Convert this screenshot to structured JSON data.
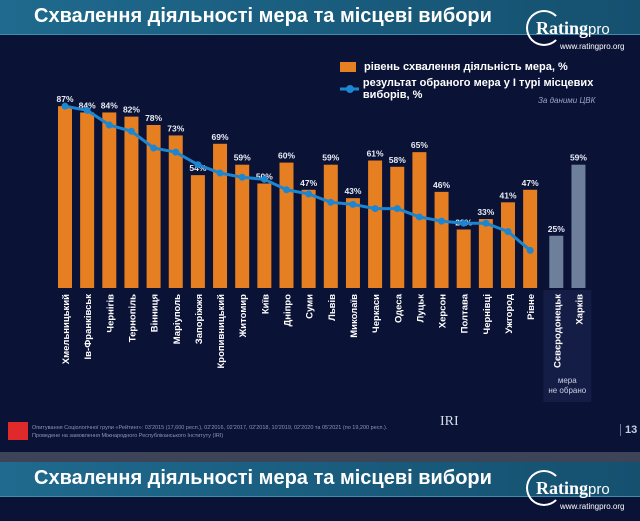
{
  "header": {
    "title": "Схвалення діяльності мера та місцеві вибори",
    "logo_name": "Rating",
    "logo_suffix": "pro",
    "logo_url": "www.ratingpro.org"
  },
  "legend": {
    "bar": "рівень схвалення діяльність мера, %",
    "line": "результат обраного мера у І турі місцевих виборів, %",
    "source": "За даними ЦВК"
  },
  "colors": {
    "bar": "#e67e22",
    "bar_no_mayor": "#6e7f9c",
    "line": "#1d86d1",
    "background": "#0a1236"
  },
  "chart_data": {
    "type": "bar+line",
    "categories": [
      "Хмельницький",
      "Ів-Франківськ",
      "Чернігів",
      "Тернопіль",
      "Вінниця",
      "Маріуполь",
      "Запоріжжя",
      "Кропивницький",
      "Житомир",
      "Київ",
      "Дніпро",
      "Суми",
      "Львів",
      "Миколаїв",
      "Черкаси",
      "Одеса",
      "Луцьк",
      "Херсон",
      "Полтава",
      "Чернівці",
      "Ужгород",
      "Рівне",
      "Сєвєродонецьк",
      "Харків"
    ],
    "series": [
      {
        "type": "bar",
        "values": [
          87,
          84,
          84,
          82,
          78,
          73,
          54,
          69,
          59,
          50,
          60,
          47,
          59,
          43,
          61,
          58,
          65,
          46,
          28,
          33,
          41,
          47,
          25,
          59
        ],
        "labels": [
          "87%",
          "84%",
          "84%",
          "82%",
          "78%",
          "73%",
          "54%",
          "69%",
          "59%",
          "50%",
          "60%",
          "47%",
          "59%",
          "43%",
          "61%",
          "58%",
          "65%",
          "46%",
          "28%",
          "33%",
          "41%",
          "47%",
          "25%",
          "59%"
        ]
      },
      {
        "type": "line",
        "values": [
          87,
          85,
          78,
          75,
          67,
          65,
          59,
          55,
          53,
          52,
          47,
          45,
          41,
          40,
          38,
          38,
          34,
          32,
          31,
          31,
          27,
          18,
          null,
          null
        ]
      }
    ],
    "no_mayor_note": "мера\nне обрано",
    "ylim": [
      0,
      100
    ]
  },
  "footer": {
    "line1": "Опитування Соціологічної групи «Рейтинг»: 03'2015 (17,600 респ.), 02'2016, 02'2017, 02'2018, 10'2019, 02'2020 та 05'2021 (по 19,200 респ.).",
    "line2": "Проведене на замовлення Міжнародного Республіканського Інституту (IRI)",
    "iri": "IRI",
    "page": "13"
  },
  "second_header": {
    "title": "Схвалення діяльності мера та місцеві вибори"
  }
}
